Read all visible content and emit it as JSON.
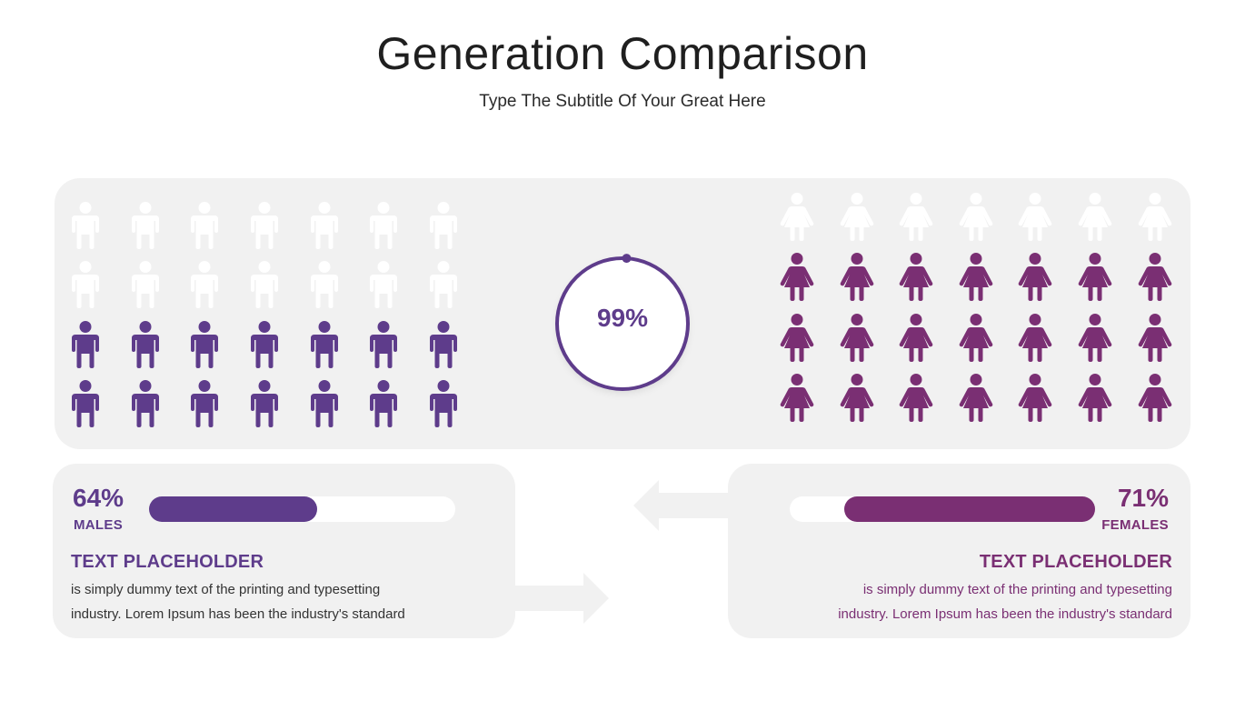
{
  "title": "Generation Comparison",
  "subtitle": "Type The Subtitle Of Your Great Here",
  "colors": {
    "males": "#5e3c8b",
    "females": "#7a2f73",
    "inactive_icon": "#ffffff",
    "panel": "#f1f1f1"
  },
  "icons": {
    "male": "male-person-icon",
    "female": "female-person-icon"
  },
  "males_grid": {
    "rows": 4,
    "columns": 7,
    "inactive_rows": 2,
    "active_rows": 2
  },
  "females_grid": {
    "rows": 4,
    "columns": 7,
    "inactive_rows": 1,
    "active_rows": 3
  },
  "center": {
    "value": "99%",
    "progress": 0.99
  },
  "males": {
    "percent": "64%",
    "label": "MALES",
    "bar_fill_fraction": 0.55,
    "heading": "TEXT PLACEHOLDER",
    "body_line1": " is simply dummy text of the printing and typesetting",
    "body_line2": "industry. Lorem Ipsum has been the industry's standard"
  },
  "females": {
    "percent": "71%",
    "label": "FEMALES",
    "bar_fill_fraction": 0.82,
    "heading": "TEXT PLACEHOLDER",
    "body_line1": "is simply dummy text of the printing and typesetting",
    "body_line2": "industry. Lorem Ipsum has been the industry's standard"
  }
}
